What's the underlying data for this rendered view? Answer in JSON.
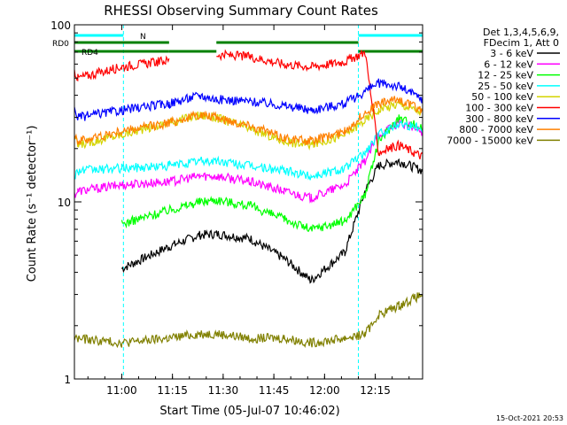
{
  "chart_data": {
    "type": "line",
    "title": "RHESSI Observing Summary Count Rates",
    "xlabel": "Start Time (05-Jul-07 10:46:02)",
    "ylabel": "Count Rate (s⁻¹ detector⁻¹)",
    "x_ticks": [
      "11:00",
      "11:15",
      "11:30",
      "11:45",
      "12:00",
      "12:15"
    ],
    "x_range_minutes": [
      0,
      103
    ],
    "y_scale": "log",
    "y_ticks": [
      "1",
      "10",
      "100"
    ],
    "ylim": [
      1,
      100
    ],
    "footer_date": "15-Oct-2021 20:53",
    "legend": {
      "header": [
        "Det 1,3,4,5,6,9,",
        "FDecim 1, Att 0"
      ],
      "placement": "right"
    },
    "series": [
      {
        "name": "3 - 6 keV",
        "color": "#000000",
        "x": [
          0,
          14,
          28,
          37,
          42,
          52,
          62,
          70,
          80,
          86,
          90,
          96,
          103
        ],
        "y": [
          null,
          4.2,
          5.6,
          6.5,
          6.6,
          6.2,
          4.8,
          3.6,
          5.2,
          11.5,
          16,
          17,
          15
        ]
      },
      {
        "name": "6 - 12 keV",
        "color": "#ff00ff",
        "x": [
          0,
          1,
          14,
          28,
          37,
          42,
          52,
          62,
          70,
          80,
          86,
          90,
          96,
          103
        ],
        "y": [
          11,
          11.5,
          12.5,
          13,
          14,
          14,
          13,
          11.5,
          10.5,
          12.5,
          17,
          24,
          28,
          25
        ]
      },
      {
        "name": "12 - 25 keV",
        "color": "#00ff00",
        "x": [
          0,
          14,
          28,
          37,
          42,
          52,
          62,
          70,
          80,
          86,
          90,
          96,
          103
        ],
        "y": [
          null,
          7.5,
          9,
          10,
          10.3,
          9.5,
          8,
          7,
          7.8,
          11,
          22,
          30,
          26
        ]
      },
      {
        "name": "25 - 50 keV",
        "color": "#00ffff",
        "x": [
          0,
          1,
          14,
          28,
          37,
          42,
          52,
          62,
          70,
          80,
          86,
          90,
          96,
          103
        ],
        "y": [
          14,
          15,
          15.5,
          16,
          17,
          17,
          16,
          15,
          14,
          15.5,
          19,
          24,
          28,
          26
        ]
      },
      {
        "name": "50 - 100 keV",
        "color": "#d4d400",
        "x": [
          0,
          1,
          14,
          28,
          37,
          42,
          52,
          62,
          70,
          80,
          86,
          90,
          96,
          103
        ],
        "y": [
          23,
          21,
          24,
          28,
          31,
          30,
          26,
          22,
          21,
          24,
          29,
          33,
          36,
          32
        ]
      },
      {
        "name": "100 - 300 keV",
        "color": "#ff0000",
        "x": [
          0,
          1,
          14,
          28,
          37,
          42,
          52,
          62,
          70,
          80,
          86,
          90,
          96,
          103
        ],
        "y": [
          55,
          50,
          58,
          63,
          null,
          68,
          66,
          60,
          58,
          62,
          70,
          19,
          21,
          18
        ]
      },
      {
        "name": "300 - 800 keV",
        "color": "#0000ff",
        "x": [
          0,
          1,
          14,
          28,
          37,
          42,
          52,
          62,
          70,
          80,
          86,
          90,
          96,
          103
        ],
        "y": [
          33,
          30,
          33,
          36,
          40,
          38,
          37,
          35,
          33,
          36,
          42,
          47,
          45,
          38
        ]
      },
      {
        "name": "800 - 7000 keV",
        "color": "#ff8000",
        "x": [
          0,
          1,
          14,
          28,
          37,
          42,
          52,
          62,
          70,
          80,
          86,
          90,
          96,
          103
        ],
        "y": [
          25,
          22,
          25,
          28,
          31,
          30,
          27,
          23,
          22,
          25,
          32,
          36,
          38,
          33
        ]
      },
      {
        "name": "7000 - 15000 keV",
        "color": "#808000",
        "x": [
          0,
          14,
          28,
          37,
          42,
          52,
          62,
          70,
          80,
          86,
          90,
          96,
          103
        ],
        "y": [
          1.7,
          1.6,
          1.7,
          1.8,
          1.8,
          1.7,
          1.7,
          1.6,
          1.7,
          1.8,
          2.3,
          2.6,
          3
        ]
      }
    ],
    "flags": [
      {
        "name": "N",
        "color": "#00ffff",
        "segments": [
          [
            0,
            14.5
          ],
          [
            84,
            103
          ]
        ]
      },
      {
        "name": "RD0",
        "color": "#008000",
        "segments": [
          [
            0,
            28
          ],
          [
            42,
            84
          ]
        ]
      },
      {
        "name": "RD4",
        "color": "#008000",
        "segments": [
          [
            0,
            28
          ],
          [
            28,
            42
          ],
          [
            84,
            103
          ]
        ]
      }
    ],
    "vertical_markers": {
      "color": "#00ffff",
      "x": [
        0,
        14.5,
        84,
        103
      ]
    }
  }
}
